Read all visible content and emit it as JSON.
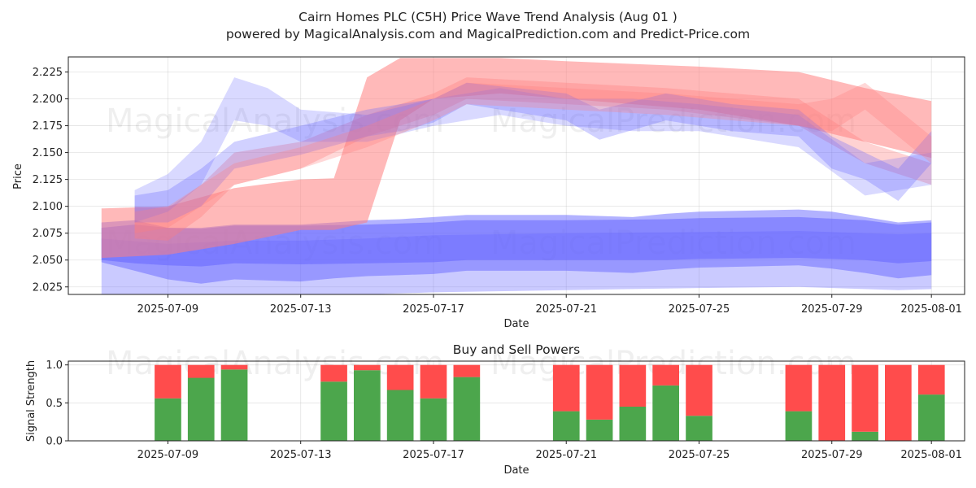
{
  "titles": {
    "line1": "Cairn Homes PLC (C5H) Price Wave Trend Analysis (Aug 01 )",
    "line2": "powered by MagicalAnalysis.com and MagicalPrediction.com and Predict-Price.com",
    "subplot": "Buy and Sell Powers"
  },
  "watermarks": {
    "left": "MagicalAnalysis.com",
    "right": "MagicalPrediction.com"
  },
  "colors": {
    "buy": "#4ca64c",
    "sell": "#ff4c4c",
    "blue_band": "#6666ff",
    "red_band": "#ff7f7f"
  },
  "chart_data": [
    {
      "type": "area",
      "xlabel": "Date",
      "ylabel": "Price",
      "x_ticks": [
        "2025-07-09",
        "2025-07-13",
        "2025-07-17",
        "2025-07-21",
        "2025-07-25",
        "2025-07-29",
        "2025-08-01"
      ],
      "y_ticks": [
        "2.025",
        "2.050",
        "2.075",
        "2.100",
        "2.125",
        "2.150",
        "2.175",
        "2.200",
        "2.225"
      ],
      "ylim": [
        2.018,
        2.239
      ],
      "xlim": [
        "2025-07-06",
        "2025-08-02"
      ],
      "grid": true,
      "series": [
        {
          "color": "blue",
          "opacity": 0.5,
          "x": [
            "2025-07-07",
            "2025-07-08",
            "2025-07-09",
            "2025-07-10",
            "2025-07-11",
            "2025-07-13",
            "2025-07-14",
            "2025-07-15",
            "2025-07-16",
            "2025-07-17",
            "2025-07-18",
            "2025-07-19",
            "2025-07-21",
            "2025-07-23",
            "2025-07-24",
            "2025-07-25",
            "2025-07-28",
            "2025-07-29",
            "2025-07-30",
            "2025-07-31",
            "2025-08-01"
          ],
          "upper": [
            2.085,
            2.087,
            2.08,
            2.08,
            2.083,
            2.083,
            2.085,
            2.087,
            2.088,
            2.09,
            2.092,
            2.092,
            2.092,
            2.09,
            2.093,
            2.095,
            2.097,
            2.095,
            2.09,
            2.085,
            2.087
          ],
          "lower": [
            2.048,
            2.04,
            2.032,
            2.028,
            2.032,
            2.03,
            2.033,
            2.035,
            2.036,
            2.037,
            2.04,
            2.04,
            2.04,
            2.038,
            2.041,
            2.043,
            2.045,
            2.042,
            2.038,
            2.033,
            2.036
          ]
        },
        {
          "color": "blue",
          "opacity": 0.55,
          "x": [
            "2025-07-07",
            "2025-07-08",
            "2025-07-09",
            "2025-07-10",
            "2025-07-11",
            "2025-07-13",
            "2025-07-15",
            "2025-07-17",
            "2025-07-18",
            "2025-07-21",
            "2025-07-24",
            "2025-07-25",
            "2025-07-28",
            "2025-07-30",
            "2025-07-31",
            "2025-08-01"
          ],
          "upper": [
            2.08,
            2.083,
            2.08,
            2.079,
            2.082,
            2.082,
            2.083,
            2.085,
            2.087,
            2.087,
            2.088,
            2.089,
            2.09,
            2.087,
            2.083,
            2.085
          ],
          "lower": [
            2.05,
            2.047,
            2.045,
            2.044,
            2.047,
            2.046,
            2.047,
            2.048,
            2.05,
            2.05,
            2.05,
            2.051,
            2.052,
            2.05,
            2.047,
            2.049
          ]
        },
        {
          "color": "blue",
          "opacity": 0.35,
          "x": [
            "2025-07-07",
            "2025-07-09",
            "2025-07-11",
            "2025-07-13",
            "2025-07-15",
            "2025-07-17",
            "2025-07-21",
            "2025-07-25",
            "2025-07-28",
            "2025-07-31",
            "2025-08-01"
          ],
          "upper": [
            2.07,
            2.065,
            2.068,
            2.068,
            2.07,
            2.073,
            2.075,
            2.076,
            2.077,
            2.074,
            2.075
          ],
          "lower": [
            2.018,
            2.012,
            2.015,
            2.015,
            2.018,
            2.02,
            2.022,
            2.024,
            2.025,
            2.022,
            2.023
          ]
        },
        {
          "color": "red",
          "opacity": 0.55,
          "x": [
            "2025-07-07",
            "2025-07-09",
            "2025-07-11",
            "2025-07-13",
            "2025-07-14",
            "2025-07-15",
            "2025-07-16",
            "2025-07-17",
            "2025-07-19",
            "2025-07-21",
            "2025-07-25",
            "2025-07-28",
            "2025-07-30",
            "2025-08-01"
          ],
          "upper": [
            2.098,
            2.1,
            2.117,
            2.125,
            2.126,
            2.22,
            2.238,
            2.238,
            2.238,
            2.235,
            2.23,
            2.225,
            2.21,
            2.198
          ],
          "lower": [
            2.052,
            2.055,
            2.065,
            2.078,
            2.078,
            2.085,
            2.18,
            2.2,
            2.205,
            2.2,
            2.19,
            2.175,
            2.16,
            2.145
          ]
        },
        {
          "color": "red",
          "opacity": 0.35,
          "x": [
            "2025-07-08",
            "2025-07-09",
            "2025-07-10",
            "2025-07-11",
            "2025-07-13",
            "2025-07-15",
            "2025-07-17",
            "2025-07-18",
            "2025-07-21",
            "2025-07-24",
            "2025-07-28",
            "2025-07-30",
            "2025-08-01"
          ],
          "upper": [
            2.1,
            2.098,
            2.12,
            2.15,
            2.16,
            2.185,
            2.205,
            2.22,
            2.215,
            2.21,
            2.2,
            2.16,
            2.14
          ],
          "lower": [
            2.07,
            2.068,
            2.09,
            2.12,
            2.135,
            2.165,
            2.185,
            2.2,
            2.195,
            2.19,
            2.175,
            2.14,
            2.12
          ]
        },
        {
          "color": "blue",
          "opacity": 0.3,
          "x": [
            "2025-07-08",
            "2025-07-09",
            "2025-07-10",
            "2025-07-11",
            "2025-07-13",
            "2025-07-15",
            "2025-07-16",
            "2025-07-17",
            "2025-07-18",
            "2025-07-21",
            "2025-07-22",
            "2025-07-24",
            "2025-07-26",
            "2025-07-28",
            "2025-07-29",
            "2025-07-30",
            "2025-07-31",
            "2025-08-01"
          ],
          "upper": [
            2.11,
            2.115,
            2.135,
            2.16,
            2.175,
            2.19,
            2.195,
            2.2,
            2.215,
            2.205,
            2.19,
            2.205,
            2.195,
            2.19,
            2.165,
            2.15,
            2.135,
            2.17
          ],
          "lower": [
            2.085,
            2.085,
            2.1,
            2.135,
            2.148,
            2.165,
            2.17,
            2.178,
            2.195,
            2.18,
            2.162,
            2.18,
            2.17,
            2.165,
            2.135,
            2.125,
            2.105,
            2.14
          ]
        },
        {
          "color": "blue",
          "opacity": 0.25,
          "x": [
            "2025-07-08",
            "2025-07-09",
            "2025-07-10",
            "2025-07-11",
            "2025-07-12",
            "2025-07-13",
            "2025-07-15",
            "2025-07-17",
            "2025-07-19",
            "2025-07-21",
            "2025-07-23",
            "2025-07-25",
            "2025-07-28",
            "2025-07-30",
            "2025-08-01"
          ],
          "upper": [
            2.115,
            2.13,
            2.16,
            2.22,
            2.21,
            2.19,
            2.185,
            2.2,
            2.21,
            2.2,
            2.2,
            2.195,
            2.185,
            2.14,
            2.15
          ],
          "lower": [
            2.085,
            2.095,
            2.12,
            2.18,
            2.175,
            2.16,
            2.16,
            2.175,
            2.185,
            2.175,
            2.17,
            2.17,
            2.155,
            2.11,
            2.12
          ]
        },
        {
          "color": "red",
          "opacity": 0.3,
          "x": [
            "2025-07-08",
            "2025-07-09",
            "2025-07-11",
            "2025-07-13",
            "2025-07-15",
            "2025-07-17",
            "2025-07-18",
            "2025-07-21",
            "2025-07-24",
            "2025-07-26",
            "2025-07-28",
            "2025-07-29",
            "2025-07-30",
            "2025-08-01"
          ],
          "upper": [
            2.095,
            2.1,
            2.14,
            2.155,
            2.175,
            2.2,
            2.215,
            2.21,
            2.205,
            2.2,
            2.195,
            2.2,
            2.215,
            2.165
          ],
          "lower": [
            2.075,
            2.08,
            2.12,
            2.135,
            2.155,
            2.18,
            2.195,
            2.19,
            2.185,
            2.18,
            2.175,
            2.17,
            2.19,
            2.14
          ]
        }
      ]
    },
    {
      "type": "bar",
      "stacked": true,
      "title": "Buy and Sell Powers",
      "xlabel": "Date",
      "ylabel": "Signal Strength",
      "ylim": [
        0,
        1.05
      ],
      "y_ticks": [
        "0.0",
        "0.5",
        "1.0"
      ],
      "x_ticks": [
        "2025-07-09",
        "2025-07-13",
        "2025-07-17",
        "2025-07-21",
        "2025-07-25",
        "2025-07-29",
        "2025-08-01"
      ],
      "grid": true,
      "series": [
        {
          "name": "Buy",
          "color": "green"
        },
        {
          "name": "Sell",
          "color": "red"
        }
      ],
      "bars": [
        {
          "date": "2025-07-09",
          "buy": 0.56
        },
        {
          "date": "2025-07-10",
          "buy": 0.83
        },
        {
          "date": "2025-07-11",
          "buy": 0.94
        },
        {
          "date": "2025-07-14",
          "buy": 0.78
        },
        {
          "date": "2025-07-15",
          "buy": 0.93
        },
        {
          "date": "2025-07-16",
          "buy": 0.67
        },
        {
          "date": "2025-07-17",
          "buy": 0.56
        },
        {
          "date": "2025-07-18",
          "buy": 0.84
        },
        {
          "date": "2025-07-21",
          "buy": 0.39
        },
        {
          "date": "2025-07-22",
          "buy": 0.28
        },
        {
          "date": "2025-07-23",
          "buy": 0.45
        },
        {
          "date": "2025-07-24",
          "buy": 0.73
        },
        {
          "date": "2025-07-25",
          "buy": 0.33
        },
        {
          "date": "2025-07-28",
          "buy": 0.39
        },
        {
          "date": "2025-07-29",
          "buy": 0.0
        },
        {
          "date": "2025-07-30",
          "buy": 0.12
        },
        {
          "date": "2025-07-31",
          "buy": 0.0
        },
        {
          "date": "2025-08-01",
          "buy": 0.61
        }
      ]
    }
  ]
}
